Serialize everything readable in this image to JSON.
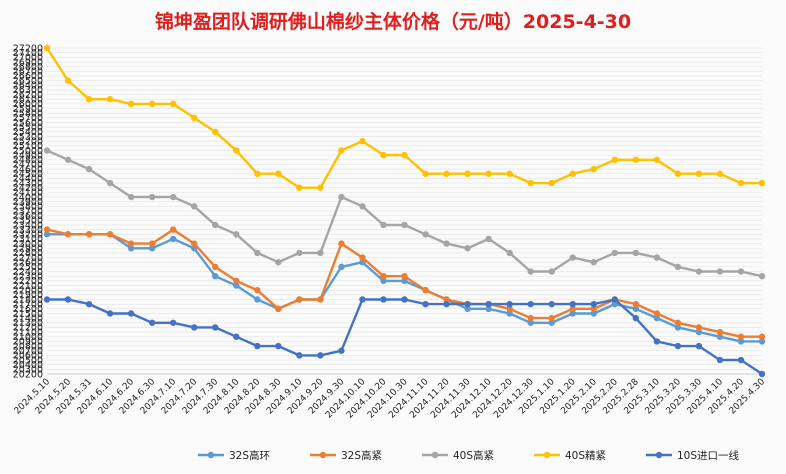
{
  "chart_data": {
    "type": "line",
    "title": "锦坤盈团队调研佛山棉纱主体价格（元/吨）2025-4-30",
    "xlabel": "",
    "ylabel": "",
    "ylim": [
      20200,
      27200
    ],
    "ytick_step": 100,
    "grid": true,
    "legend_position": "bottom",
    "x": [
      "2024.5.10",
      "2024.5.20",
      "2024.5.31",
      "2024.6.10",
      "2024.6.20",
      "2024.6.30",
      "2024.7.10",
      "2024.7.20",
      "2024.7.30",
      "2024.8.10",
      "2024.8.20",
      "2024.8.30",
      "2024.9.10",
      "2024.9.20",
      "2024.9.30",
      "2024.10.10",
      "2024.10.20",
      "2024.10.30",
      "2024.11.10",
      "2024.11.20",
      "2024.11.30",
      "2024.12.10",
      "2024.12.20",
      "2024.12.30",
      "2025.1.10",
      "2025.1.20",
      "2025.2.10",
      "2025.2.20",
      "2025.2.28",
      "2025.3.10",
      "2025.3.20",
      "2025.3.30",
      "2025.4.10",
      "2025.4.20",
      "2025.4.30"
    ],
    "series": [
      {
        "name": "32S高环",
        "color": "#5b9bd5",
        "values": [
          23200,
          23200,
          23200,
          23200,
          22900,
          22900,
          23100,
          22900,
          22300,
          22100,
          21800,
          21600,
          21800,
          21800,
          22500,
          22600,
          22200,
          22200,
          22000,
          21800,
          21600,
          21600,
          21500,
          21300,
          21300,
          21500,
          21500,
          21700,
          21600,
          21400,
          21200,
          21100,
          21000,
          20900,
          20900
        ]
      },
      {
        "name": "32S高紧",
        "color": "#ed7d31",
        "values": [
          23300,
          23200,
          23200,
          23200,
          23000,
          23000,
          23300,
          23000,
          22500,
          22200,
          22000,
          21600,
          21800,
          21800,
          23000,
          22700,
          22300,
          22300,
          22000,
          21800,
          21700,
          21700,
          21600,
          21400,
          21400,
          21600,
          21600,
          21800,
          21700,
          21500,
          21300,
          21200,
          21100,
          21000,
          21000
        ]
      },
      {
        "name": "40S高紧",
        "color": "#a5a5a5",
        "values": [
          25000,
          24800,
          24600,
          24300,
          24000,
          24000,
          24000,
          23800,
          23400,
          23200,
          22800,
          22600,
          22800,
          22800,
          24000,
          23800,
          23400,
          23400,
          23200,
          23000,
          22900,
          23100,
          22800,
          22400,
          22400,
          22700,
          22600,
          22800,
          22800,
          22700,
          22500,
          22400,
          22400,
          22400,
          22300
        ]
      },
      {
        "name": "40S精紧",
        "color": "#ffc000",
        "values": [
          27200,
          26500,
          26100,
          26100,
          26000,
          26000,
          26000,
          25700,
          25400,
          25000,
          24500,
          24500,
          24200,
          24200,
          25000,
          25200,
          24900,
          24900,
          24500,
          24500,
          24500,
          24500,
          24500,
          24300,
          24300,
          24500,
          24600,
          24800,
          24800,
          24800,
          24500,
          24500,
          24500,
          24300,
          24300
        ]
      },
      {
        "name": "10S进口一线",
        "color": "#4472c4",
        "values": [
          21800,
          21800,
          21700,
          21500,
          21500,
          21300,
          21300,
          21200,
          21200,
          21000,
          20800,
          20800,
          20600,
          20600,
          20700,
          21800,
          21800,
          21800,
          21700,
          21700,
          21700,
          21700,
          21700,
          21700,
          21700,
          21700,
          21700,
          21800,
          21400,
          20900,
          20800,
          20800,
          20500,
          20500,
          20200
        ]
      }
    ]
  }
}
